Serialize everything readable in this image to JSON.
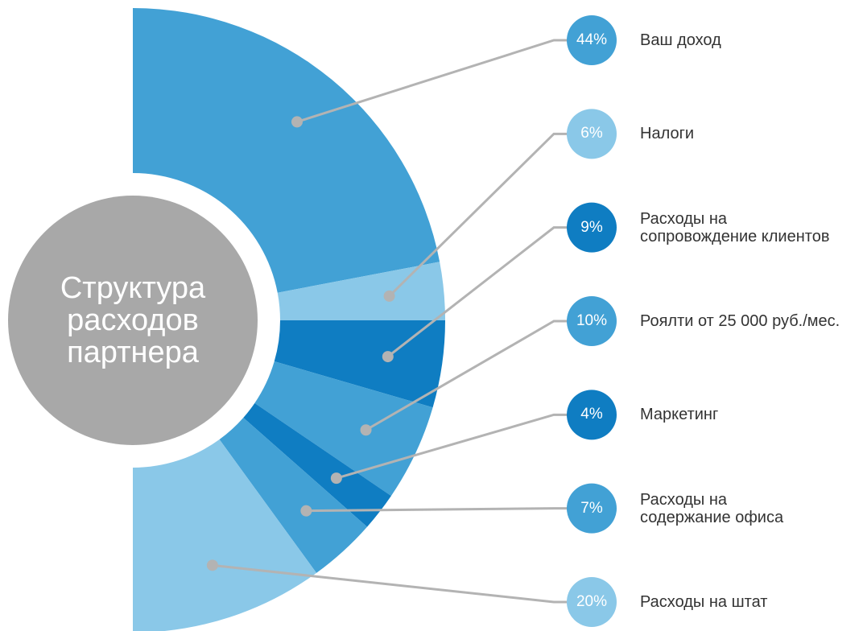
{
  "chart_data": {
    "type": "pie",
    "title": "Структура\nрасходов\nпартнера",
    "categories": [
      "Ваш доход",
      "Налоги",
      "Расходы на\nсопровождение клиентов",
      "Роялти от 25 000 руб./мес.",
      "Маркетинг",
      "Расходы на\nсодержание офиса",
      "Расходы на штат"
    ],
    "values": [
      44,
      6,
      9,
      10,
      4,
      7,
      20
    ],
    "value_labels": [
      "44%",
      "6%",
      "9%",
      "10%",
      "4%",
      "7%",
      "20%"
    ],
    "colors": [
      "#42a1d5",
      "#8ac8e8",
      "#0f7dc2",
      "#42a1d5",
      "#0f7dc2",
      "#42a1d5",
      "#8ac8e8"
    ]
  }
}
